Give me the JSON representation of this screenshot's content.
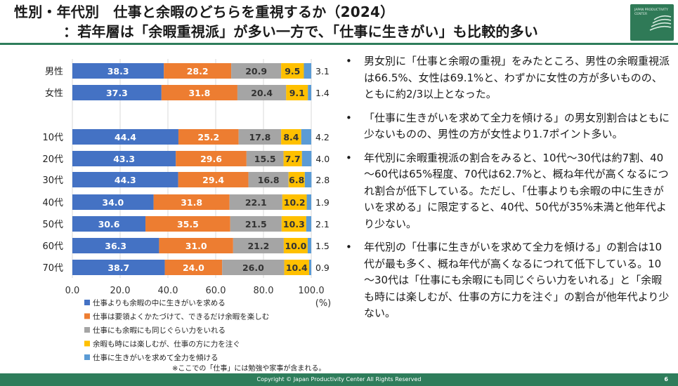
{
  "title": {
    "line1": "性別・年代別　仕事と余暇のどちらを重視するか（2024）",
    "line2": "：若年層は「余暇重視派」が多い一方で、「仕事に生きがい」も比較的多い"
  },
  "logo": {
    "text": "JAPAN PRODUCTIVITY CENTER"
  },
  "colors": {
    "work_life_balance": "#4472c4",
    "leisure_focus": "#ed7d31",
    "equal": "#a5a5a5",
    "work_focus": "#ffc000",
    "work_devotion": "#5b9bd5",
    "brand_green": "#2e7d5b"
  },
  "chart_data": {
    "type": "bar",
    "orientation": "horizontal",
    "stacked": true,
    "categories": [
      "男性",
      "女性",
      "10代",
      "20代",
      "30代",
      "40代",
      "50代",
      "60代",
      "70代"
    ],
    "series": [
      {
        "name": "仕事よりも余暇の中に生きがいを求める",
        "color": "#4472c4",
        "values": [
          38.3,
          37.3,
          44.4,
          43.3,
          44.3,
          34.0,
          30.6,
          36.3,
          38.7
        ]
      },
      {
        "name": "仕事は要領よくかたづけて、できるだけ余暇を楽しむ",
        "color": "#ed7d31",
        "values": [
          28.2,
          31.8,
          25.2,
          29.6,
          29.4,
          31.8,
          35.5,
          31.0,
          24.0
        ]
      },
      {
        "name": "仕事にも余暇にも同じぐらい力をいれる",
        "color": "#a5a5a5",
        "values": [
          20.9,
          20.4,
          17.8,
          15.5,
          16.8,
          22.1,
          21.5,
          21.2,
          26.0
        ]
      },
      {
        "name": "余暇も時には楽しむが、仕事の方に力を注ぐ",
        "color": "#ffc000",
        "values": [
          9.5,
          9.1,
          8.4,
          7.7,
          6.8,
          10.2,
          10.3,
          10.0,
          10.4
        ]
      },
      {
        "name": "仕事に生きがいを求めて全力を傾ける",
        "color": "#5b9bd5",
        "values": [
          3.1,
          1.4,
          4.2,
          4.0,
          2.8,
          1.9,
          2.1,
          1.5,
          0.9
        ]
      }
    ],
    "xlim": [
      0,
      100
    ],
    "xticks": [
      "0.0",
      "20.0",
      "40.0",
      "60.0",
      "80.0",
      "100.0"
    ],
    "xunit": "(%)",
    "note": "※ここでの「仕事」には勉強や家事が含まれる。"
  },
  "notes": [
    {
      "bullet": "•",
      "text": "男女別に「仕事と余暇の重視」をみたところ、男性の余暇重視派は66.5%、女性は69.1%と、わずかに女性の方が多いものの、ともに約2/3以上となった。"
    },
    {
      "bullet": "•",
      "text": "「仕事に生きがいを求めて全力を傾ける」の男女別割合はともに少ないものの、男性の方が女性より1.7ポイント多い。"
    },
    {
      "bullet": "•",
      "text": "年代別に余暇重視派の割合をみると、10代～30代は約7割、40～60代は65%程度、70代は62.7%と、概ね年代が高くなるにつれ割合が低下している。ただし、「仕事よりも余暇の中に生きがいを求める」に限定すると、40代、50代が35%未満と他年代より少ない。"
    },
    {
      "bullet": "•",
      "text": "年代別の「仕事に生きがいを求めて全力を傾ける」の割合は10代が最も多く、概ね年代が高くなるにつれて低下している。10～30代は「仕事にも余暇にも同じぐらい力をいれる」と「余暇も時には楽しむが、仕事の方に力を注ぐ」の割合が他年代より少ない。"
    }
  ],
  "footer": {
    "copyright": "Copyright © Japan Productivity Center All Rights Reserved",
    "page": "6"
  }
}
